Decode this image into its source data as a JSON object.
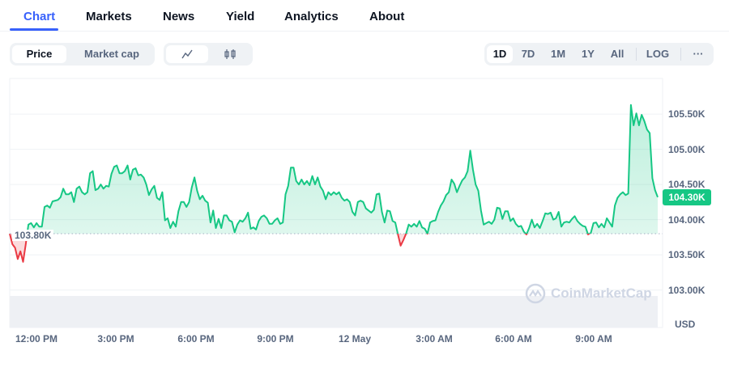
{
  "tabs": [
    {
      "label": "Chart"
    },
    {
      "label": "Markets"
    },
    {
      "label": "News"
    },
    {
      "label": "Yield"
    },
    {
      "label": "Analytics"
    },
    {
      "label": "About"
    }
  ],
  "active_tab": "Chart",
  "metric_toggle": {
    "options": [
      "Price",
      "Market cap"
    ],
    "selected": "Price"
  },
  "chart_style_toggle": {
    "options": [
      "line-chart-icon",
      "candlestick-icon"
    ],
    "selected": "line-chart-icon"
  },
  "ranges": {
    "options": [
      "1D",
      "7D",
      "1M",
      "1Y",
      "All"
    ],
    "selected": "1D",
    "log_label": "LOG",
    "more_label": "···"
  },
  "colors": {
    "accent": "#3861fb",
    "up": "#16c784",
    "down": "#ea3943"
  },
  "watermark": "CoinMarketCap",
  "chart_data": {
    "type": "area",
    "currency": "USD",
    "current_price_label": "104.30K",
    "baseline": 103.8,
    "baseline_label": "103.80K",
    "y_ticks": [
      {
        "v": 105.5,
        "label": "105.50K"
      },
      {
        "v": 105.0,
        "label": "105.00K"
      },
      {
        "v": 104.5,
        "label": "104.50K"
      },
      {
        "v": 104.0,
        "label": "104.00K"
      },
      {
        "v": 103.5,
        "label": "103.50K"
      },
      {
        "v": 103.0,
        "label": "103.00K"
      }
    ],
    "x_ticks": [
      "12:00 PM",
      "3:00 PM",
      "6:00 PM",
      "9:00 PM",
      "12 May",
      "3:00 AM",
      "6:00 AM",
      "9:00 AM"
    ],
    "grid": true,
    "prices_k": [
      103.8,
      103.65,
      103.6,
      103.44,
      103.55,
      103.4,
      103.65,
      103.93,
      103.95,
      103.89,
      103.95,
      103.9,
      103.9,
      104.18,
      104.2,
      104.17,
      104.26,
      104.27,
      104.28,
      104.32,
      104.44,
      104.36,
      104.36,
      104.39,
      104.25,
      104.44,
      104.47,
      104.39,
      104.36,
      104.39,
      104.66,
      104.69,
      104.42,
      104.44,
      104.5,
      104.44,
      104.48,
      104.47,
      104.65,
      104.75,
      104.77,
      104.66,
      104.66,
      104.69,
      104.77,
      104.57,
      104.71,
      104.73,
      104.63,
      104.64,
      104.6,
      104.5,
      104.35,
      104.43,
      104.48,
      104.31,
      104.28,
      104.39,
      103.99,
      104.02,
      103.88,
      103.97,
      103.9,
      104.12,
      104.25,
      104.25,
      104.18,
      104.25,
      104.46,
      104.6,
      104.41,
      104.29,
      104.34,
      104.27,
      104.24,
      103.96,
      104.13,
      103.88,
      104.01,
      103.88,
      104.06,
      104.06,
      103.99,
      103.97,
      103.82,
      103.93,
      103.99,
      103.97,
      104.02,
      104.1,
      103.87,
      103.89,
      103.86,
      103.98,
      104.04,
      104.06,
      104.02,
      103.94,
      103.94,
      103.99,
      104.02,
      103.94,
      103.96,
      104.36,
      104.48,
      104.74,
      104.74,
      104.55,
      104.5,
      104.57,
      104.5,
      104.55,
      104.49,
      104.62,
      104.5,
      104.6,
      104.47,
      104.41,
      104.29,
      104.39,
      104.35,
      104.39,
      104.36,
      104.39,
      104.31,
      104.27,
      104.29,
      104.25,
      104.11,
      104.06,
      104.25,
      104.27,
      104.25,
      104.16,
      104.13,
      104.1,
      104.14,
      104.36,
      104.37,
      104.11,
      103.96,
      104.13,
      104.12,
      103.98,
      103.96,
      103.79,
      103.63,
      103.71,
      103.8,
      103.93,
      103.9,
      103.94,
      103.9,
      103.98,
      103.89,
      103.87,
      103.8,
      103.96,
      103.98,
      103.99,
      104.11,
      104.2,
      104.26,
      104.35,
      104.39,
      104.57,
      104.51,
      104.39,
      104.48,
      104.56,
      104.6,
      104.69,
      104.98,
      104.71,
      104.5,
      104.41,
      104.13,
      103.93,
      103.95,
      103.97,
      103.94,
      104.0,
      104.17,
      104.16,
      104.01,
      104.12,
      104.12,
      103.98,
      104.02,
      103.94,
      103.9,
      103.91,
      103.83,
      103.79,
      103.88,
      104.0,
      103.89,
      103.94,
      103.88,
      103.98,
      104.09,
      104.08,
      104.1,
      104.0,
      104.02,
      104.11,
      103.9,
      103.96,
      103.97,
      103.96,
      104.01,
      104.05,
      103.98,
      103.94,
      103.91,
      103.9,
      103.79,
      103.81,
      103.95,
      103.96,
      103.89,
      103.94,
      103.89,
      104.02,
      103.96,
      103.9,
      104.2,
      104.31,
      104.36,
      104.39,
      104.35,
      104.37,
      105.63,
      105.34,
      105.51,
      105.34,
      105.49,
      105.4,
      105.28,
      105.23,
      104.59,
      104.42,
      104.32
    ]
  }
}
